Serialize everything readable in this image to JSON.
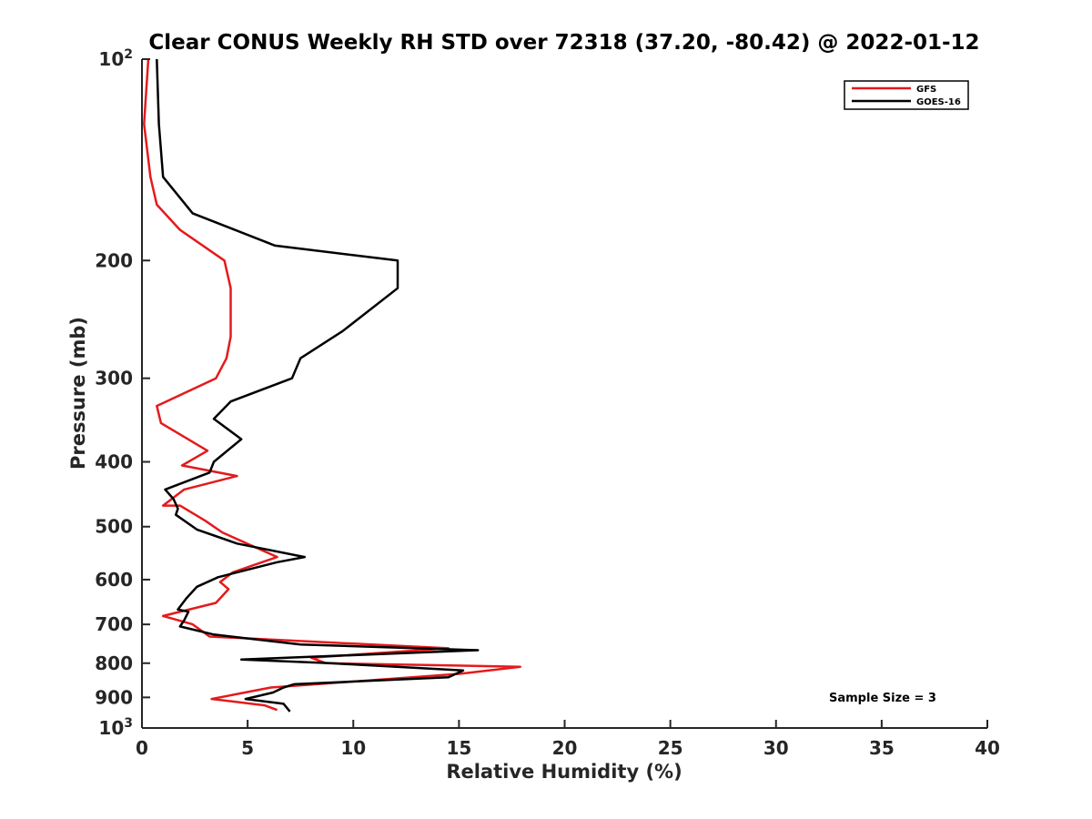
{
  "chart_data": {
    "type": "line",
    "title": "Clear CONUS Weekly RH STD over 72318 (37.20, -80.42) @ 2022-01-12",
    "xlabel": "Relative Humidity (%)",
    "ylabel": "Pressure (mb)",
    "xlim": [
      0,
      40
    ],
    "ylim": [
      100,
      1000
    ],
    "y_scale": "log",
    "y_reversed": true,
    "x_ticks": [
      "0",
      "5",
      "10",
      "15",
      "20",
      "25",
      "30",
      "35",
      "40"
    ],
    "y_ticks": [
      {
        "value": 100,
        "base": "10",
        "exp": "2"
      },
      {
        "value": 200,
        "label": "200"
      },
      {
        "value": 300,
        "label": "300"
      },
      {
        "value": 400,
        "label": "400"
      },
      {
        "value": 500,
        "label": "500"
      },
      {
        "value": 600,
        "label": "600"
      },
      {
        "value": 700,
        "label": "700"
      },
      {
        "value": 800,
        "label": "800"
      },
      {
        "value": 900,
        "label": "900"
      },
      {
        "value": 1000,
        "base": "10",
        "exp": "3"
      }
    ],
    "grid": false,
    "legend_position": "top-right",
    "annotation": "Sample Size = 3",
    "series": [
      {
        "name": "GFS",
        "color": "#e41a1c",
        "points": [
          [
            0.3,
            100
          ],
          [
            0.1,
            125
          ],
          [
            0.4,
            150
          ],
          [
            0.7,
            165
          ],
          [
            1.8,
            180
          ],
          [
            3.9,
            200
          ],
          [
            4.2,
            220
          ],
          [
            4.2,
            260
          ],
          [
            4.0,
            280
          ],
          [
            3.5,
            300
          ],
          [
            0.7,
            330
          ],
          [
            0.9,
            350
          ],
          [
            3.1,
            385
          ],
          [
            1.9,
            405
          ],
          [
            4.5,
            420
          ],
          [
            2.0,
            440
          ],
          [
            1.0,
            465
          ],
          [
            1.8,
            465
          ],
          [
            3.0,
            490
          ],
          [
            3.8,
            510
          ],
          [
            6.4,
            555
          ],
          [
            4.3,
            585
          ],
          [
            3.7,
            605
          ],
          [
            4.1,
            620
          ],
          [
            3.5,
            650
          ],
          [
            1.0,
            680
          ],
          [
            2.4,
            700
          ],
          [
            3.2,
            730
          ],
          [
            14.5,
            760
          ],
          [
            8.0,
            785
          ],
          [
            8.7,
            800
          ],
          [
            17.9,
            810
          ],
          [
            15.0,
            830
          ],
          [
            6.1,
            870
          ],
          [
            3.3,
            905
          ],
          [
            5.8,
            925
          ],
          [
            6.4,
            940
          ]
        ]
      },
      {
        "name": "GOES-16",
        "color": "#000000",
        "points": [
          [
            0.7,
            100
          ],
          [
            0.8,
            125
          ],
          [
            1.0,
            150
          ],
          [
            2.4,
            170
          ],
          [
            6.3,
            190
          ],
          [
            12.1,
            200
          ],
          [
            12.1,
            220
          ],
          [
            9.5,
            255
          ],
          [
            7.5,
            280
          ],
          [
            7.1,
            300
          ],
          [
            4.2,
            325
          ],
          [
            3.4,
            345
          ],
          [
            4.7,
            370
          ],
          [
            3.4,
            400
          ],
          [
            3.2,
            415
          ],
          [
            1.1,
            440
          ],
          [
            1.5,
            455
          ],
          [
            1.7,
            470
          ],
          [
            1.6,
            480
          ],
          [
            2.6,
            505
          ],
          [
            4.5,
            530
          ],
          [
            7.7,
            555
          ],
          [
            6.4,
            565
          ],
          [
            3.6,
            595
          ],
          [
            2.6,
            615
          ],
          [
            2.1,
            640
          ],
          [
            1.7,
            665
          ],
          [
            2.2,
            670
          ],
          [
            2.0,
            690
          ],
          [
            1.8,
            705
          ],
          [
            3.4,
            725
          ],
          [
            7.5,
            750
          ],
          [
            15.9,
            765
          ],
          [
            4.7,
            790
          ],
          [
            8.9,
            800
          ],
          [
            15.2,
            820
          ],
          [
            14.5,
            840
          ],
          [
            7.2,
            860
          ],
          [
            6.7,
            870
          ],
          [
            6.2,
            885
          ],
          [
            4.9,
            905
          ],
          [
            6.7,
            920
          ],
          [
            7.0,
            945
          ]
        ]
      }
    ]
  }
}
